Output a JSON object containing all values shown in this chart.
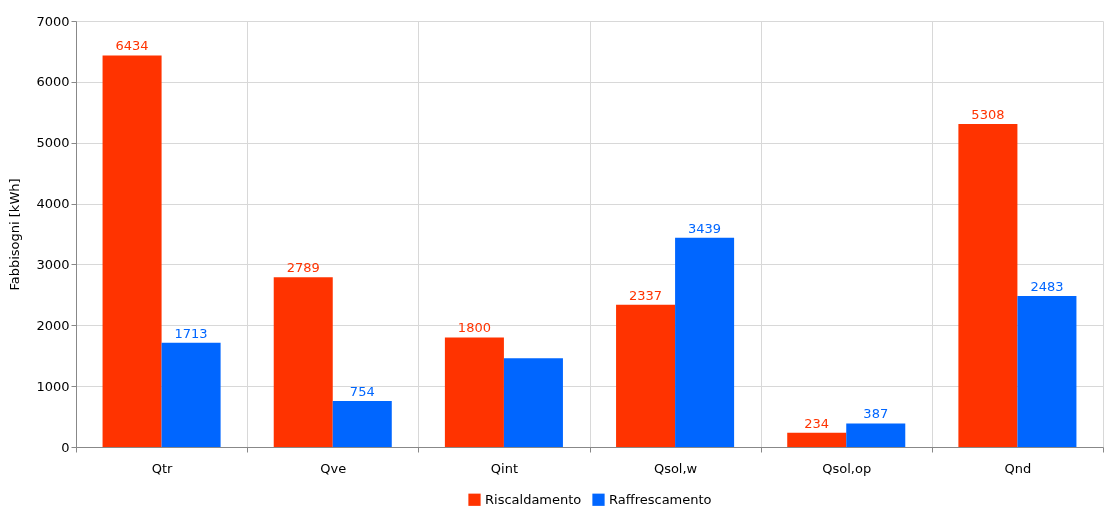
{
  "chart_data": {
    "type": "bar",
    "ylabel": "Fabbisogni [kWh]",
    "categories": [
      "Qtr",
      "Qve",
      "Qint",
      "Qsol,w",
      "Qsol,op",
      "Qnd"
    ],
    "series": [
      {
        "name": "Riscaldamento",
        "color": "#ff3300",
        "values": [
          6434,
          2789,
          1800,
          2337,
          234,
          5308
        ],
        "value_labels": [
          "6434",
          "2789",
          "1800",
          "2337",
          "234",
          "5308"
        ]
      },
      {
        "name": "Raffrescamento",
        "color": "#0066ff",
        "values": [
          1713,
          754,
          1460,
          3439,
          387,
          2483
        ],
        "value_labels": [
          "1713",
          "754",
          null,
          "3439",
          "387",
          "2483"
        ]
      }
    ],
    "ylim": [
      0,
      7000
    ],
    "yticks": [
      0,
      1000,
      2000,
      3000,
      4000,
      5000,
      6000,
      7000
    ],
    "grid": true,
    "legend": "bottom"
  }
}
